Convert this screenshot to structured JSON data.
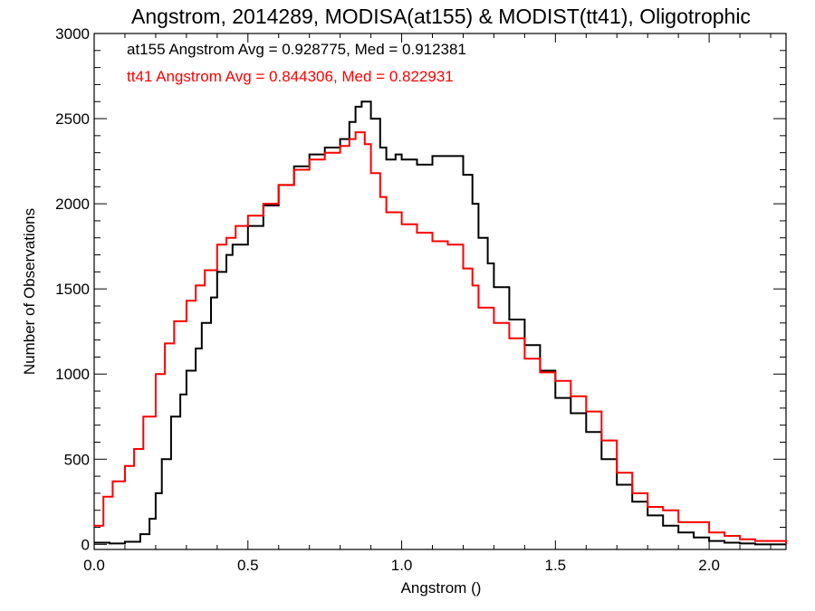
{
  "chart_data": {
    "type": "line",
    "title": "Angstrom, 2014289, MODISA(at155) & MODIST(tt41), Oligotrophic",
    "xlabel": "Angstrom ()",
    "ylabel": "Number of Observations",
    "xlim": [
      0,
      2.25
    ],
    "ylim": [
      -30,
      3000
    ],
    "x_ticks": [
      "0.0",
      "0.5",
      "1.0",
      "1.5",
      "2.0"
    ],
    "y_ticks": [
      "0",
      "500",
      "1000",
      "1500",
      "2000",
      "2500",
      "3000"
    ],
    "grid": false,
    "step": true,
    "annotations": [
      {
        "text": "at155 Angstrom Avg = 0.928775, Med = 0.912381",
        "color": "#000000"
      },
      {
        "text": "tt41 Angstrom Avg = 0.844306, Med = 0.822931",
        "color": "#ff0000"
      }
    ],
    "series": [
      {
        "color": "#000000",
        "x": [
          0.0,
          0.05,
          0.1,
          0.15,
          0.18,
          0.2,
          0.22,
          0.25,
          0.28,
          0.3,
          0.33,
          0.35,
          0.38,
          0.4,
          0.43,
          0.45,
          0.5,
          0.55,
          0.6,
          0.65,
          0.7,
          0.75,
          0.8,
          0.83,
          0.85,
          0.87,
          0.9,
          0.93,
          0.95,
          0.98,
          1.0,
          1.05,
          1.1,
          1.15,
          1.2,
          1.23,
          1.25,
          1.28,
          1.3,
          1.35,
          1.4,
          1.45,
          1.5,
          1.55,
          1.6,
          1.65,
          1.7,
          1.75,
          1.8,
          1.85,
          1.9,
          1.95,
          2.0,
          2.05,
          2.1,
          2.15
        ],
        "y": [
          10,
          5,
          15,
          60,
          150,
          300,
          500,
          750,
          880,
          1020,
          1150,
          1300,
          1450,
          1600,
          1700,
          1760,
          1870,
          1990,
          2110,
          2220,
          2290,
          2330,
          2380,
          2480,
          2570,
          2600,
          2500,
          2330,
          2260,
          2290,
          2260,
          2230,
          2280,
          2280,
          2170,
          2000,
          1800,
          1650,
          1510,
          1320,
          1170,
          1020,
          860,
          770,
          660,
          500,
          350,
          250,
          170,
          110,
          70,
          40,
          20,
          10,
          5,
          0
        ]
      },
      {
        "color": "#ff0000",
        "x": [
          0.0,
          0.03,
          0.06,
          0.1,
          0.13,
          0.16,
          0.2,
          0.23,
          0.26,
          0.3,
          0.33,
          0.36,
          0.4,
          0.43,
          0.46,
          0.5,
          0.55,
          0.6,
          0.65,
          0.7,
          0.75,
          0.8,
          0.83,
          0.85,
          0.88,
          0.9,
          0.93,
          0.95,
          1.0,
          1.05,
          1.1,
          1.15,
          1.2,
          1.23,
          1.25,
          1.3,
          1.35,
          1.4,
          1.45,
          1.5,
          1.55,
          1.6,
          1.65,
          1.7,
          1.75,
          1.8,
          1.85,
          1.9,
          1.95,
          2.0,
          2.05,
          2.1,
          2.15,
          2.25
        ],
        "y": [
          110,
          280,
          370,
          460,
          560,
          750,
          1000,
          1180,
          1310,
          1430,
          1520,
          1610,
          1760,
          1800,
          1870,
          1930,
          2000,
          2110,
          2200,
          2260,
          2300,
          2340,
          2380,
          2420,
          2350,
          2180,
          2040,
          1950,
          1880,
          1830,
          1780,
          1760,
          1620,
          1520,
          1390,
          1300,
          1210,
          1090,
          1010,
          960,
          870,
          780,
          610,
          420,
          300,
          220,
          200,
          130,
          130,
          70,
          50,
          30,
          20,
          0
        ]
      }
    ]
  }
}
